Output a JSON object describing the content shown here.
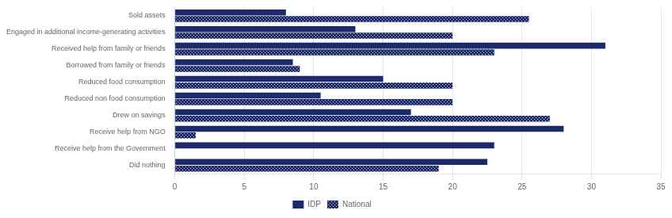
{
  "chart_data": {
    "type": "bar",
    "orientation": "horizontal",
    "categories": [
      "Sold assets",
      "Engaged in additional income-generating activities",
      "Received help from family or friends",
      "Borrowed from family or friends",
      "Reduced food consumption",
      "Reduced non food consumption",
      "Drew on savings",
      "Receive help from NGO",
      "Receive help from the Government",
      "Did nothing"
    ],
    "series": [
      {
        "name": "IDP",
        "color": "#1B2A6B",
        "values": [
          8,
          13,
          31,
          8.5,
          15,
          10.5,
          17,
          28,
          23,
          22.5
        ]
      },
      {
        "name": "National",
        "color": "#1B2A6B",
        "values": [
          25.5,
          20,
          23,
          9,
          20,
          20,
          27,
          1.5,
          0.0,
          19
        ]
      }
    ],
    "xlim": [
      0,
      35
    ],
    "xticks": [
      0,
      5,
      10,
      15,
      20,
      25,
      30,
      35
    ],
    "grid": true,
    "legend": "bottom"
  }
}
